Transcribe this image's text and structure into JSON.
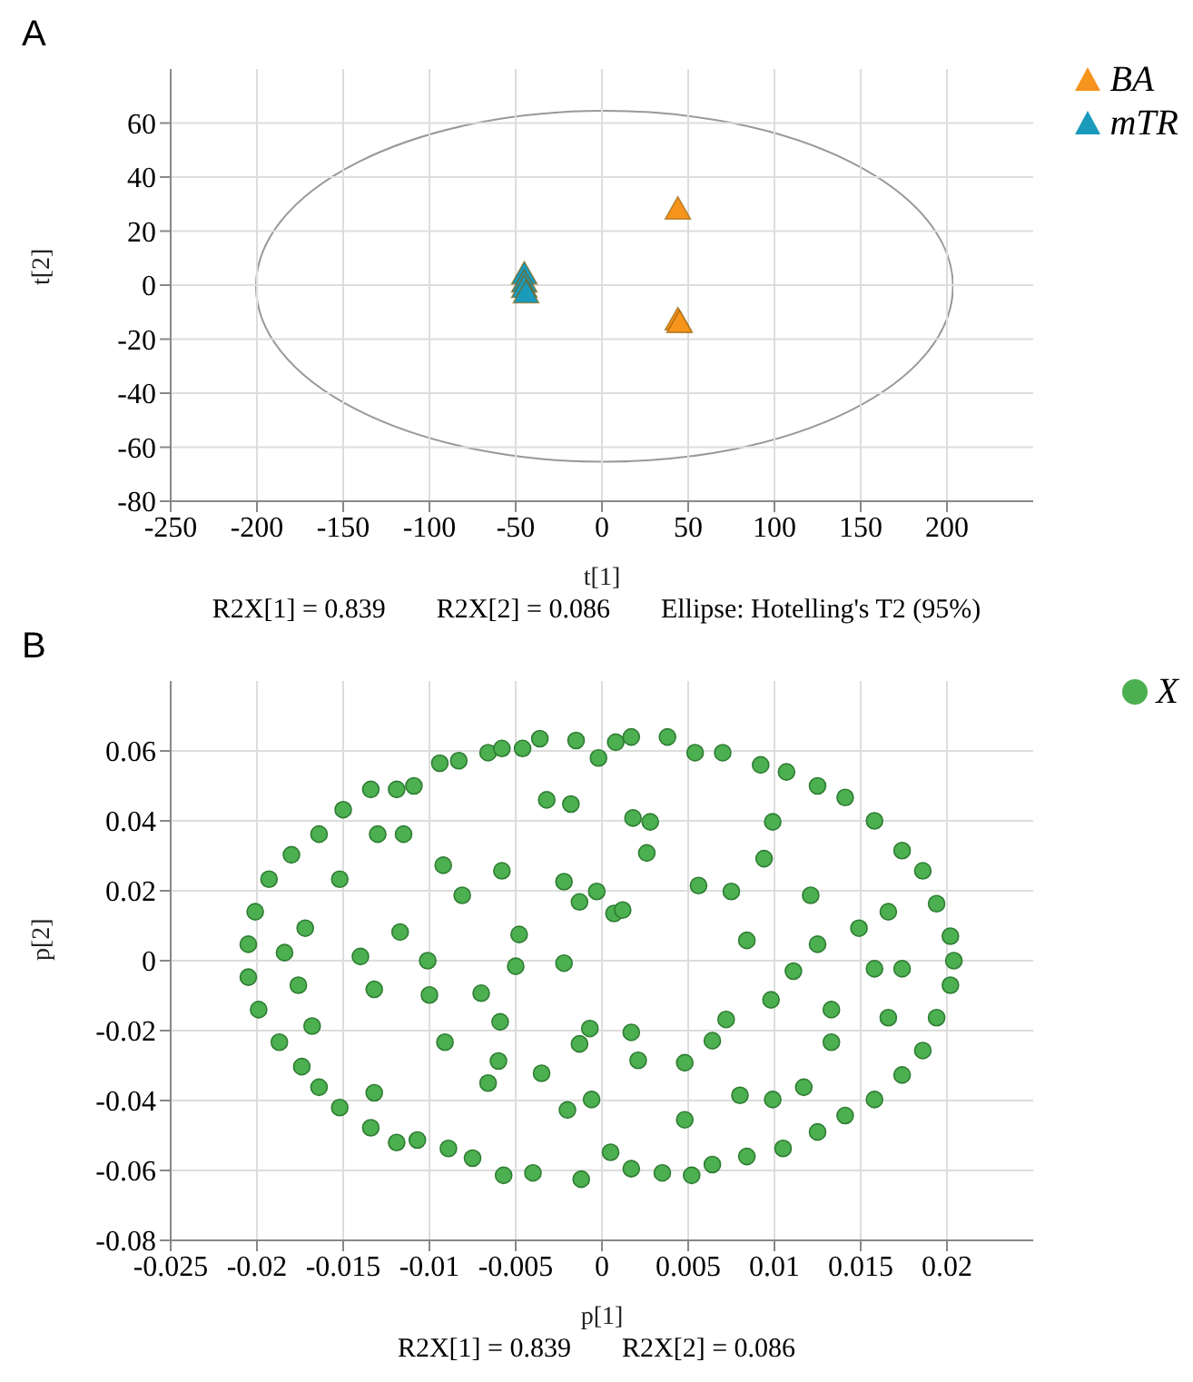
{
  "chart_data": [
    {
      "type": "scatter",
      "title": "A",
      "xlabel": "t[1]",
      "ylabel": "t[2]",
      "xlim": [
        -250,
        250
      ],
      "ylim": [
        -80,
        80
      ],
      "xticks": [
        -250,
        -200,
        -150,
        -100,
        -50,
        0,
        50,
        100,
        150,
        200
      ],
      "yticks": [
        -80,
        -60,
        -40,
        -20,
        0,
        20,
        40,
        60
      ],
      "grid": true,
      "legend": "top right",
      "marker": "triangle",
      "annotations": [
        "R2X[1] = 0.839",
        "R2X[2] = 0.086",
        "Ellipse: Hotelling's T2 (95%)"
      ],
      "series": [
        {
          "name": "BA",
          "color": "#f7941d",
          "x": [
            44,
            44,
            45
          ],
          "values": [
            28,
            -13,
            -14
          ]
        },
        {
          "name": "mTR",
          "color": "#1a9bbc",
          "x": [
            -45,
            -45,
            -45,
            -44
          ],
          "values": [
            4,
            1,
            -1,
            -3
          ]
        }
      ]
    },
    {
      "type": "scatter",
      "title": "B",
      "xlabel": "p[1]",
      "ylabel": "p[2]",
      "xlim": [
        -0.025,
        0.025
      ],
      "ylim": [
        -0.08,
        0.08
      ],
      "xticks": [
        -0.025,
        -0.02,
        -0.015,
        -0.01,
        -0.005,
        0,
        0.005,
        0.01,
        0.015,
        0.02
      ],
      "yticks": [
        -0.08,
        -0.06,
        -0.04,
        -0.02,
        0,
        0.02,
        0.04,
        0.06
      ],
      "grid": true,
      "legend": "top right",
      "marker": "circle",
      "annotations": [
        "R2X[1] = 0.839",
        "R2X[2] = 0.086"
      ],
      "series": [
        {
          "name": "X",
          "color": "#4caf50",
          "x": [
            -0.0036,
            -0.0015,
            -0.0002,
            0.0008,
            0.0017,
            0.0038,
            0.0054,
            0.007,
            0.0092,
            0.0107,
            0.0125,
            0.0141,
            0.0158,
            0.0174,
            0.0186,
            0.0194,
            0.0202,
            0.0204,
            0.0202,
            0.0194,
            0.0186,
            0.0174,
            0.0158,
            0.0141,
            0.0125,
            0.0105,
            0.0084,
            0.0064,
            0.0052,
            0.0035,
            0.0017,
            0.0005,
            -0.0012,
            -0.004,
            -0.0057,
            -0.0075,
            -0.0089,
            -0.0107,
            -0.0119,
            -0.0134,
            -0.0152,
            -0.0164,
            -0.0174,
            -0.0187,
            -0.0199,
            -0.0205,
            -0.0205,
            -0.0201,
            -0.0193,
            -0.018,
            -0.0164,
            -0.015,
            -0.0134,
            -0.0119,
            -0.0109,
            -0.0094,
            -0.0083,
            -0.0066,
            -0.0058,
            -0.0046,
            -0.0032,
            -0.0018,
            0.0018,
            0.0028,
            0.0026,
            0.0056,
            0.0075,
            0.0084,
            0.0111,
            0.0098,
            0.0072,
            0.0064,
            0.0017,
            0.0021,
            -0.0007,
            -0.0013,
            -0.0022,
            -0.0013,
            -0.0003,
            0.0007,
            0.0012,
            -0.0022,
            -0.005,
            -0.0048,
            -0.0058,
            -0.0081,
            -0.0092,
            -0.0101,
            -0.01,
            -0.0091,
            -0.007,
            -0.0059,
            -0.006,
            -0.0066,
            -0.0035,
            -0.002,
            -0.0006,
            -0.0117,
            -0.014,
            -0.0132,
            -0.0132,
            -0.0115,
            -0.013,
            -0.0152,
            0.0099,
            0.0094,
            0.0121,
            0.0125,
            0.0133,
            0.0133,
            0.0117,
            0.0099,
            0.008,
            0.0048,
            0.0048,
            0.0149,
            0.0158,
            0.0166,
            0.0166,
            0.0174,
            -0.0184,
            -0.0172,
            -0.0176,
            -0.0168
          ],
          "values": [
            0.0635,
            0.063,
            0.058,
            0.0625,
            0.064,
            0.064,
            0.0595,
            0.0595,
            0.056,
            0.054,
            0.05,
            0.0467,
            0.04,
            0.0315,
            0.0257,
            0.0163,
            0.007,
            0,
            -0.007,
            -0.0163,
            -0.0257,
            -0.0327,
            -0.0397,
            -0.0443,
            -0.049,
            -0.0537,
            -0.056,
            -0.0583,
            -0.0614,
            -0.0607,
            -0.0595,
            -0.0548,
            -0.0625,
            -0.0607,
            -0.0614,
            -0.0565,
            -0.0537,
            -0.0513,
            -0.052,
            -0.0478,
            -0.042,
            -0.0362,
            -0.0303,
            -0.0233,
            -0.014,
            -0.0047,
            0.0047,
            0.014,
            0.0233,
            0.0303,
            0.0362,
            0.0432,
            0.049,
            0.049,
            0.05,
            0.0565,
            0.0572,
            0.0595,
            0.0607,
            0.0607,
            0.046,
            0.0448,
            0.0408,
            0.0397,
            0.0308,
            0.0215,
            0.0198,
            0.0058,
            -0.003,
            -0.0112,
            -0.0168,
            -0.0229,
            -0.0205,
            -0.0285,
            -0.0194,
            -0.0238,
            -0.0007,
            0.0168,
            0.0198,
            0.0135,
            0.0145,
            0.0226,
            -0.0016,
            0.0075,
            0.0257,
            0.0187,
            0.0273,
            0,
            -0.0098,
            -0.0233,
            -0.0093,
            -0.0175,
            -0.0287,
            -0.035,
            -0.0322,
            -0.0427,
            -0.0397,
            0.0082,
            0.0012,
            -0.0082,
            -0.0378,
            0.0362,
            0.0362,
            0.0233,
            0.0397,
            0.0292,
            0.0187,
            0.0047,
            -0.014,
            -0.0233,
            -0.0362,
            -0.0397,
            -0.0385,
            -0.0292,
            -0.0455,
            0.0093,
            -0.0023,
            -0.0163,
            0.014,
            -0.0023,
            0.0023,
            0.0093,
            -0.007,
            -0.0187
          ]
        }
      ]
    }
  ]
}
